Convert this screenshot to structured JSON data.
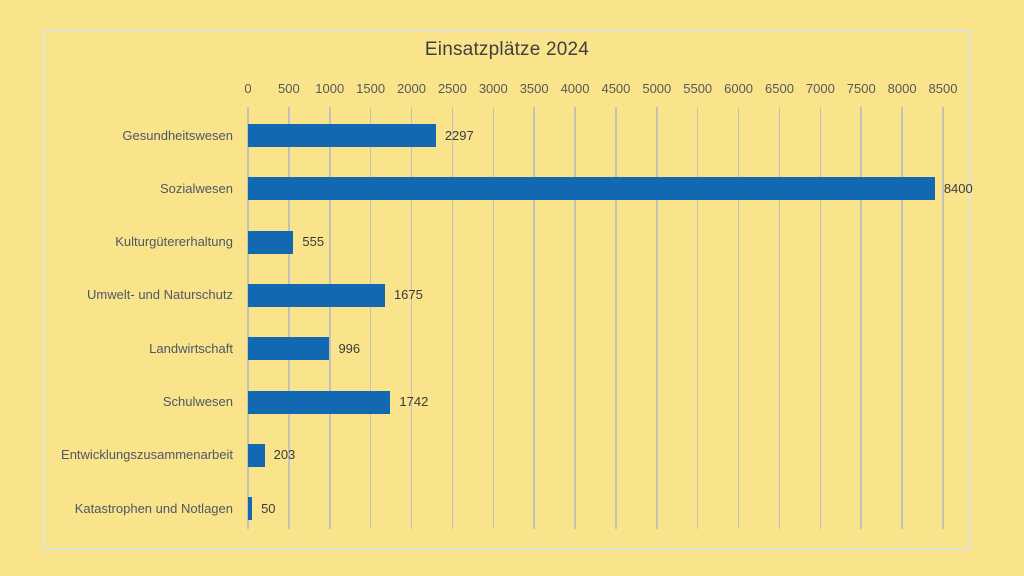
{
  "page": {
    "background_color": "#F9E48B"
  },
  "chart_data": {
    "type": "bar",
    "orientation": "horizontal",
    "title": "Einsatzplätze 2024",
    "categories": [
      "Gesundheitswesen",
      "Sozialwesen",
      "Kulturgütererhaltung",
      "Umwelt- und Naturschutz",
      "Landwirtschaft",
      "Schulwesen",
      "Entwicklungszusammenarbeit",
      "Katastrophen und Notlagen"
    ],
    "values": [
      2297,
      8400,
      555,
      1675,
      996,
      1742,
      203,
      50
    ],
    "data_labels": [
      2297,
      8400,
      555,
      1675,
      996,
      1742,
      203,
      50
    ],
    "xlabel": "",
    "ylabel": "",
    "xlim": [
      0,
      8500
    ],
    "x_tick_interval": 500,
    "x_ticks": [
      0,
      500,
      1000,
      1500,
      2000,
      2500,
      3000,
      3500,
      4000,
      4500,
      5000,
      5500,
      6000,
      6500,
      7000,
      7500,
      8000,
      8500
    ],
    "tick_position": "top",
    "grid": true,
    "legend": false,
    "colors": {
      "bar": "#1268B1",
      "background": "#F9E48B",
      "gridline": "#C2C2BB",
      "panel_border": "#E3E3DB",
      "title_text": "#3F3F3F",
      "tick_text": "#595959",
      "category_text": "#4E5765",
      "value_text": "#3B3B3B"
    }
  }
}
